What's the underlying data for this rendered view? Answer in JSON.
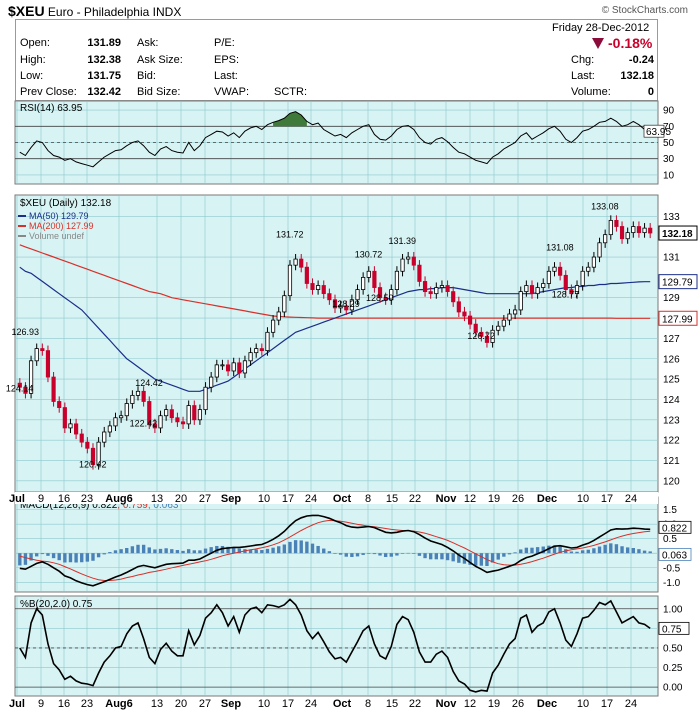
{
  "header": {
    "symbol": "$XEU",
    "name": "Euro - Philadelphia",
    "exchange": "INDX",
    "brand": "© StockCharts.com"
  },
  "quote": {
    "date": "Friday  28-Dec-2012",
    "change_pct": "-0.18%",
    "open_label": "Open:",
    "open": "131.89",
    "high_label": "High:",
    "high": "132.38",
    "low_label": "Low:",
    "low": "131.75",
    "prev_label": "Prev Close:",
    "prev": "132.42",
    "ask_label": "Ask:",
    "asksize_label": "Ask Size:",
    "bid_label": "Bid:",
    "bidsize_label": "Bid Size:",
    "pe_label": "P/E:",
    "eps_label": "EPS:",
    "last2_label": "Last:",
    "vwap_label": "VWAP:",
    "sctr_label": "SCTR:",
    "chg_label": "Chg:",
    "chg": "-0.24",
    "last_label": "Last:",
    "last": "132.18",
    "volume_label": "Volume:",
    "volume": "0"
  },
  "colors": {
    "panel_bg": "#d8f3f3",
    "grid": "#8dc9cf",
    "up": "#000000",
    "down": "#c8002b",
    "ma50": "#1a2f8a",
    "ma200": "#d8302a",
    "hist": "#4a82b8"
  },
  "chart_data": [
    {
      "type": "candlestick",
      "title": "$XEU (Daily) 132.18",
      "legend": [
        {
          "name": "MA(50) 129.79",
          "color": "#1a2f8a"
        },
        {
          "name": "MA(200) 127.99",
          "color": "#d8302a"
        },
        {
          "name": "Volume undef",
          "color": "#888888"
        }
      ],
      "ylim": [
        119.5,
        134
      ],
      "y_ticks": [
        120,
        121,
        122,
        123,
        124,
        125,
        126,
        127,
        128,
        129,
        131,
        133
      ],
      "x_ticks": [
        "Jul",
        "9",
        "16",
        "23",
        "Aug6",
        "13",
        "20",
        "27",
        "Sep",
        "10",
        "17",
        "24",
        "Oct",
        "8",
        "15",
        "22",
        "Nov",
        "12",
        "19",
        "26",
        "Dec",
        "10",
        "17",
        "24"
      ],
      "value_tags": [
        {
          "label": "132.18",
          "value": 132.18
        },
        {
          "label": "129.79",
          "value": 129.79
        },
        {
          "label": "127.99",
          "value": 127.99
        }
      ],
      "annotations": [
        {
          "label": "126.93",
          "day": 1,
          "value": 126.93
        },
        {
          "label": "124.14",
          "day": 0,
          "value": 124.14
        },
        {
          "label": "120.42",
          "day": 13,
          "value": 120.42
        },
        {
          "label": "124.42",
          "day": 23,
          "value": 124.42
        },
        {
          "label": "122.42",
          "day": 22,
          "value": 122.42
        },
        {
          "label": "131.72",
          "day": 48,
          "value": 131.72
        },
        {
          "label": "130.72",
          "day": 62,
          "value": 130.72
        },
        {
          "label": "131.39",
          "day": 68,
          "value": 131.39
        },
        {
          "label": "128.29",
          "day": 58,
          "value": 128.29
        },
        {
          "label": "128.59",
          "day": 64,
          "value": 128.59
        },
        {
          "label": "126.72",
          "day": 82,
          "value": 126.72
        },
        {
          "label": "131.08",
          "day": 96,
          "value": 131.08
        },
        {
          "label": "128.77",
          "day": 97,
          "value": 128.77
        },
        {
          "label": "133.08",
          "day": 104,
          "value": 133.08
        }
      ],
      "closes": [
        124.6,
        124.3,
        125.9,
        126.5,
        126.4,
        125.1,
        123.9,
        123.6,
        122.6,
        122.8,
        122.3,
        121.9,
        121.6,
        120.8,
        121.9,
        122.4,
        122.7,
        123.1,
        123.2,
        123.8,
        124.2,
        124.4,
        123.9,
        122.8,
        122.6,
        123.2,
        123.5,
        123.1,
        122.9,
        122.8,
        123.7,
        123.0,
        123.5,
        124.6,
        125.1,
        125.7,
        125.7,
        125.4,
        125.8,
        125.3,
        125.9,
        126.3,
        126.5,
        126.4,
        127.3,
        127.9,
        128.3,
        129.1,
        130.6,
        130.9,
        130.5,
        129.7,
        129.4,
        129.6,
        129.2,
        128.9,
        128.5,
        128.6,
        128.4,
        128.9,
        129.4,
        130.0,
        130.3,
        129.5,
        129.0,
        128.9,
        129.4,
        130.3,
        130.9,
        131.0,
        130.6,
        129.8,
        129.3,
        129.2,
        129.5,
        129.6,
        129.3,
        128.8,
        128.3,
        128.1,
        127.7,
        127.3,
        127.1,
        126.8,
        127.4,
        127.6,
        127.9,
        128.2,
        128.4,
        129.3,
        129.6,
        129.2,
        129.5,
        129.7,
        130.3,
        130.5,
        130.1,
        129.4,
        129.2,
        129.6,
        130.3,
        130.5,
        131.0,
        131.7,
        132.1,
        132.8,
        132.5,
        131.9,
        132.2,
        132.5,
        132.2,
        132.42,
        132.18
      ],
      "ma50": [
        130.5,
        130.3,
        130.2,
        130.0,
        129.8,
        129.6,
        129.4,
        129.2,
        129.0,
        128.8,
        128.6,
        128.4,
        128.1,
        127.8,
        127.5,
        127.2,
        126.9,
        126.6,
        126.3,
        126.0,
        125.8,
        125.6,
        125.4,
        125.2,
        125.0,
        124.9,
        124.8,
        124.7,
        124.6,
        124.5,
        124.4,
        124.4,
        124.4,
        124.5,
        124.6,
        124.7,
        124.8,
        124.9,
        125.1,
        125.3,
        125.5,
        125.7,
        125.9,
        126.1,
        126.3,
        126.5,
        126.7,
        126.9,
        127.1,
        127.3,
        127.4,
        127.5,
        127.6,
        127.7,
        127.8,
        127.9,
        128.0,
        128.1,
        128.2,
        128.3,
        128.4,
        128.5,
        128.6,
        128.7,
        128.8,
        128.9,
        129.0,
        129.1,
        129.2,
        129.3,
        129.35,
        129.4,
        129.4,
        129.45,
        129.45,
        129.5,
        129.5,
        129.5,
        129.45,
        129.4,
        129.35,
        129.3,
        129.25,
        129.2,
        129.2,
        129.2,
        129.2,
        129.2,
        129.2,
        129.2,
        129.2,
        129.2,
        129.25,
        129.3,
        129.35,
        129.4,
        129.45,
        129.5,
        129.5,
        129.55,
        129.55,
        129.6,
        129.6,
        129.65,
        129.65,
        129.7,
        129.7,
        129.72,
        129.74,
        129.76,
        129.78,
        129.79,
        129.79
      ],
      "ma200": [
        131.6,
        131.5,
        131.4,
        131.3,
        131.2,
        131.1,
        131.0,
        130.9,
        130.8,
        130.7,
        130.6,
        130.5,
        130.4,
        130.3,
        130.2,
        130.1,
        130.0,
        129.9,
        129.8,
        129.7,
        129.6,
        129.5,
        129.4,
        129.3,
        129.25,
        129.2,
        129.1,
        129.0,
        128.95,
        128.9,
        128.85,
        128.8,
        128.75,
        128.7,
        128.65,
        128.6,
        128.55,
        128.5,
        128.45,
        128.4,
        128.35,
        128.3,
        128.25,
        128.2,
        128.15,
        128.1,
        128.08,
        128.06,
        128.05,
        128.04,
        128.03,
        128.02,
        128.01,
        128.0,
        128.0,
        128.0,
        128.0,
        128.0,
        128.0,
        128.0,
        128.0,
        128.0,
        128.0,
        128.0,
        128.0,
        128.0,
        128.0,
        128.0,
        128.0,
        128.0,
        128.0,
        128.0,
        128.0,
        128.0,
        128.0,
        128.0,
        128.0,
        128.0,
        128.0,
        128.0,
        128.0,
        128.0,
        128.0,
        128.0,
        128.0,
        128.0,
        128.0,
        128.0,
        128.0,
        128.0,
        128.0,
        128.0,
        128.0,
        128.0,
        128.0,
        128.0,
        128.0,
        128.0,
        128.0,
        128.0,
        128.0,
        128.0,
        128.0,
        128.0,
        128.0,
        128.0,
        127.99,
        127.99,
        127.99,
        127.99,
        127.99,
        127.99,
        127.99
      ]
    },
    {
      "type": "line",
      "title": "RSI(14) 63.95",
      "ylim": [
        0,
        100
      ],
      "y_ticks": [
        10,
        30,
        50,
        70,
        90
      ],
      "reference_lines": [
        70,
        30
      ],
      "value_tag": "63.95",
      "values": [
        38,
        34,
        44,
        52,
        50,
        40,
        34,
        32,
        28,
        30,
        26,
        24,
        22,
        20,
        26,
        32,
        36,
        40,
        41,
        46,
        50,
        52,
        46,
        38,
        34,
        42,
        45,
        40,
        38,
        37,
        50,
        40,
        46,
        56,
        60,
        64,
        63,
        58,
        62,
        56,
        64,
        68,
        70,
        66,
        72,
        75,
        77,
        80,
        86,
        88,
        84,
        76,
        72,
        74,
        66,
        62,
        58,
        60,
        56,
        62,
        66,
        70,
        72,
        60,
        54,
        53,
        58,
        66,
        70,
        71,
        66,
        56,
        50,
        48,
        54,
        56,
        51,
        44,
        38,
        36,
        32,
        28,
        26,
        24,
        32,
        36,
        42,
        46,
        50,
        58,
        62,
        54,
        58,
        62,
        67,
        70,
        64,
        54,
        50,
        56,
        64,
        66,
        70,
        75,
        76,
        80,
        76,
        70,
        72,
        76,
        72,
        66,
        64
      ]
    },
    {
      "type": "line",
      "title": "MACD(12,26,9) 0.822, 0.759, 0.063",
      "legend": [
        {
          "name": "MACD(12,26,9) 0.822",
          "color": "#000000"
        },
        {
          "name": "0.759",
          "color": "#d8302a"
        },
        {
          "name": "0.063",
          "color": "#4a82b8"
        }
      ],
      "ylim": [
        -1.3,
        1.9
      ],
      "y_ticks": [
        -1.0,
        -0.5,
        0.5,
        1.0,
        1.5
      ],
      "value_tags": [
        "0.822",
        "0.063"
      ],
      "macd": [
        -0.52,
        -0.55,
        -0.45,
        -0.35,
        -0.3,
        -0.38,
        -0.5,
        -0.62,
        -0.78,
        -0.85,
        -0.95,
        -1.02,
        -1.08,
        -1.12,
        -1.05,
        -0.98,
        -0.9,
        -0.82,
        -0.75,
        -0.66,
        -0.56,
        -0.46,
        -0.42,
        -0.46,
        -0.5,
        -0.44,
        -0.38,
        -0.36,
        -0.35,
        -0.34,
        -0.24,
        -0.24,
        -0.2,
        -0.1,
        0.0,
        0.1,
        0.16,
        0.18,
        0.2,
        0.2,
        0.22,
        0.25,
        0.28,
        0.3,
        0.38,
        0.48,
        0.6,
        0.75,
        0.95,
        1.12,
        1.22,
        1.28,
        1.3,
        1.3,
        1.26,
        1.2,
        1.12,
        1.05,
        0.95,
        0.9,
        0.88,
        0.9,
        0.92,
        0.88,
        0.8,
        0.72,
        0.7,
        0.72,
        0.76,
        0.78,
        0.74,
        0.64,
        0.52,
        0.42,
        0.36,
        0.3,
        0.2,
        0.08,
        -0.06,
        -0.18,
        -0.32,
        -0.45,
        -0.55,
        -0.66,
        -0.62,
        -0.58,
        -0.52,
        -0.45,
        -0.38,
        -0.25,
        -0.15,
        -0.1,
        -0.02,
        0.06,
        0.16,
        0.24,
        0.26,
        0.22,
        0.18,
        0.2,
        0.28,
        0.34,
        0.44,
        0.56,
        0.68,
        0.8,
        0.84,
        0.83,
        0.84,
        0.86,
        0.85,
        0.83,
        0.822
      ],
      "signal": [
        -0.1,
        -0.15,
        -0.2,
        -0.24,
        -0.27,
        -0.29,
        -0.33,
        -0.38,
        -0.46,
        -0.54,
        -0.63,
        -0.71,
        -0.79,
        -0.86,
        -0.91,
        -0.94,
        -0.94,
        -0.92,
        -0.89,
        -0.84,
        -0.8,
        -0.75,
        -0.71,
        -0.66,
        -0.63,
        -0.59,
        -0.55,
        -0.5,
        -0.46,
        -0.42,
        -0.38,
        -0.34,
        -0.3,
        -0.26,
        -0.21,
        -0.15,
        -0.09,
        -0.04,
        0.0,
        0.04,
        0.08,
        0.12,
        0.15,
        0.19,
        0.23,
        0.29,
        0.36,
        0.45,
        0.56,
        0.67,
        0.78,
        0.88,
        0.97,
        1.05,
        1.1,
        1.13,
        1.12,
        1.1,
        1.07,
        1.03,
        0.99,
        0.96,
        0.93,
        0.91,
        0.88,
        0.85,
        0.82,
        0.8,
        0.78,
        0.77,
        0.76,
        0.73,
        0.69,
        0.63,
        0.57,
        0.51,
        0.44,
        0.36,
        0.27,
        0.18,
        0.08,
        -0.02,
        -0.12,
        -0.22,
        -0.3,
        -0.36,
        -0.4,
        -0.41,
        -0.41,
        -0.38,
        -0.34,
        -0.29,
        -0.23,
        -0.17,
        -0.1,
        -0.03,
        0.03,
        0.08,
        0.12,
        0.15,
        0.18,
        0.22,
        0.27,
        0.33,
        0.39,
        0.46,
        0.53,
        0.59,
        0.64,
        0.68,
        0.71,
        0.74,
        0.759
      ]
    },
    {
      "type": "line",
      "title": "%B(20,2.0) 0.75",
      "ylim": [
        -0.1,
        1.15
      ],
      "y_ticks": [
        0.0,
        0.25,
        0.5,
        0.75,
        1.0
      ],
      "reference_lines": [
        1.0,
        0.5,
        0.0
      ],
      "value_tag": "0.75",
      "values": [
        0.5,
        0.38,
        0.82,
        1.0,
        0.92,
        0.55,
        0.3,
        0.22,
        0.1,
        0.14,
        0.08,
        0.05,
        0.04,
        0.02,
        0.18,
        0.32,
        0.4,
        0.5,
        0.52,
        0.68,
        0.78,
        0.82,
        0.62,
        0.38,
        0.3,
        0.48,
        0.56,
        0.46,
        0.4,
        0.4,
        0.72,
        0.54,
        0.66,
        0.88,
        0.95,
        1.05,
        0.95,
        0.78,
        0.9,
        0.7,
        0.92,
        1.0,
        1.02,
        0.95,
        1.05,
        1.04,
        1.02,
        1.05,
        1.12,
        1.05,
        0.92,
        0.72,
        0.62,
        0.7,
        0.58,
        0.45,
        0.36,
        0.38,
        0.32,
        0.45,
        0.58,
        0.72,
        0.78,
        0.55,
        0.4,
        0.36,
        0.52,
        0.8,
        0.9,
        0.86,
        0.7,
        0.45,
        0.32,
        0.32,
        0.42,
        0.46,
        0.38,
        0.2,
        0.08,
        0.04,
        -0.04,
        -0.06,
        -0.04,
        -0.05,
        0.18,
        0.28,
        0.42,
        0.55,
        0.62,
        0.88,
        0.92,
        0.7,
        0.78,
        0.82,
        0.96,
        1.0,
        0.82,
        0.6,
        0.52,
        0.68,
        0.88,
        0.9,
        0.98,
        1.08,
        1.05,
        1.1,
        0.96,
        0.82,
        0.86,
        0.9,
        0.82,
        0.8,
        0.75
      ]
    }
  ]
}
